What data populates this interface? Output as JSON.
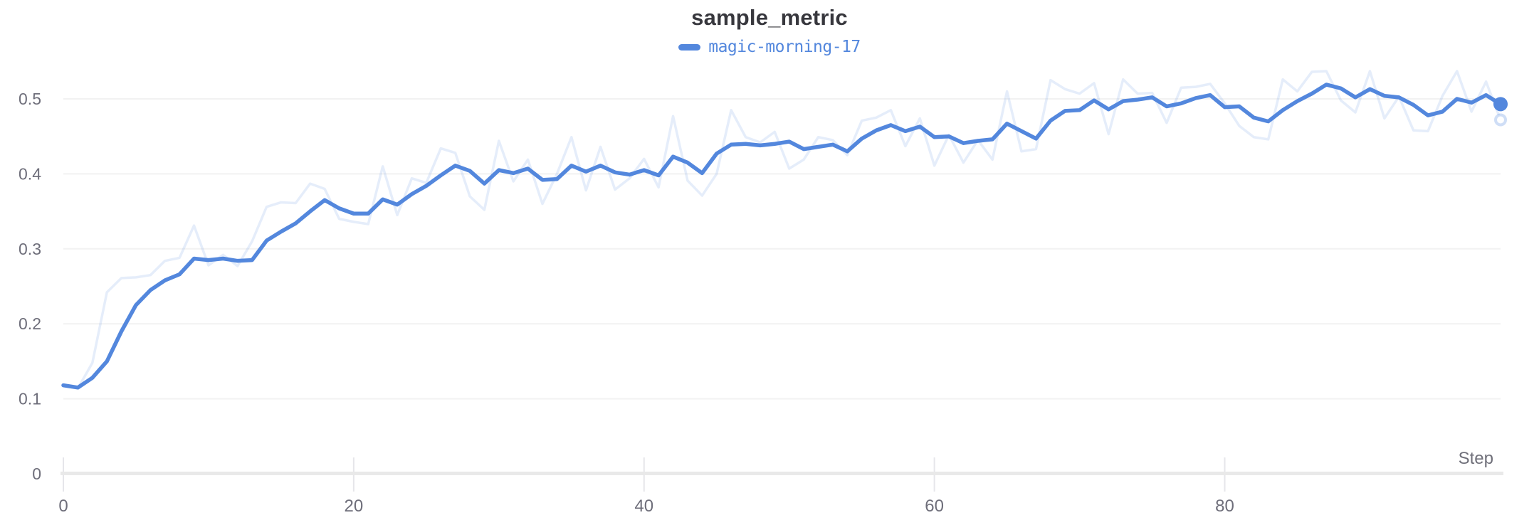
{
  "header": {
    "title": "sample_metric",
    "legend": {
      "run_name": "magic-morning-17",
      "color": "#5387DD"
    }
  },
  "colors": {
    "accent": "#5387DD",
    "grid": "#f2f2f2",
    "axis_line": "#e9e9e9",
    "tick_mark": "#e6e6ea",
    "tick_text": "#6e6e7a",
    "title_text": "#37373d",
    "raw_line_opacity": 0.15
  },
  "axes": {
    "x_label": "Step",
    "x_tick_values": [
      0,
      20,
      40,
      60,
      80
    ],
    "x_tick_labels": [
      "0",
      "20",
      "40",
      "60",
      "80"
    ],
    "y_tick_values": [
      0,
      0.1,
      0.2,
      0.3,
      0.4,
      0.5
    ],
    "y_tick_labels": [
      "0",
      "0.1",
      "0.2",
      "0.3",
      "0.4",
      "0.5"
    ],
    "x_range": [
      0,
      99
    ],
    "y_range": [
      0,
      0.55
    ],
    "grid": "horizontal-only"
  },
  "chart_data": {
    "type": "line",
    "title": "sample_metric",
    "xlabel": "Step",
    "legend_position": "top-center",
    "x": [
      0,
      1,
      2,
      3,
      4,
      5,
      6,
      7,
      8,
      9,
      10,
      11,
      12,
      13,
      14,
      15,
      16,
      17,
      18,
      19,
      20,
      21,
      22,
      23,
      24,
      25,
      26,
      27,
      28,
      29,
      30,
      31,
      32,
      33,
      34,
      35,
      36,
      37,
      38,
      39,
      40,
      41,
      42,
      43,
      44,
      45,
      46,
      47,
      48,
      49,
      50,
      51,
      52,
      53,
      54,
      55,
      56,
      57,
      58,
      59,
      60,
      61,
      62,
      63,
      64,
      65,
      66,
      67,
      68,
      69,
      70,
      71,
      72,
      73,
      74,
      75,
      76,
      77,
      78,
      79,
      80,
      81,
      82,
      83,
      84,
      85,
      86,
      87,
      88,
      89,
      90,
      91,
      92,
      93,
      94,
      95,
      96,
      97,
      98,
      99
    ],
    "series": [
      {
        "name": "magic-morning-17 (raw)",
        "role": "raw",
        "color": "#5387DD",
        "opacity": 0.15,
        "end_marker": "open-ring",
        "values": [
          0.117,
          0.114,
          0.148,
          0.242,
          0.261,
          0.262,
          0.265,
          0.284,
          0.288,
          0.331,
          0.278,
          0.292,
          0.277,
          0.31,
          0.356,
          0.362,
          0.361,
          0.387,
          0.38,
          0.34,
          0.336,
          0.333,
          0.41,
          0.345,
          0.394,
          0.388,
          0.434,
          0.428,
          0.37,
          0.352,
          0.444,
          0.39,
          0.419,
          0.36,
          0.4,
          0.449,
          0.378,
          0.436,
          0.379,
          0.394,
          0.42,
          0.382,
          0.477,
          0.391,
          0.371,
          0.4,
          0.485,
          0.449,
          0.442,
          0.456,
          0.407,
          0.419,
          0.449,
          0.445,
          0.425,
          0.471,
          0.475,
          0.485,
          0.437,
          0.474,
          0.411,
          0.452,
          0.415,
          0.445,
          0.419,
          0.51,
          0.43,
          0.433,
          0.525,
          0.513,
          0.507,
          0.521,
          0.453,
          0.526,
          0.507,
          0.508,
          0.468,
          0.515,
          0.516,
          0.52,
          0.494,
          0.464,
          0.449,
          0.446,
          0.526,
          0.51,
          0.536,
          0.537,
          0.498,
          0.482,
          0.537,
          0.474,
          0.503,
          0.458,
          0.457,
          0.504,
          0.537,
          0.483,
          0.523,
          0.472
        ]
      },
      {
        "name": "magic-morning-17",
        "role": "smoothed",
        "color": "#5387DD",
        "opacity": 1,
        "end_marker": "solid-dot",
        "values": [
          0.118,
          0.115,
          0.128,
          0.15,
          0.19,
          0.225,
          0.245,
          0.258,
          0.266,
          0.287,
          0.285,
          0.287,
          0.284,
          0.285,
          0.311,
          0.323,
          0.334,
          0.35,
          0.365,
          0.354,
          0.347,
          0.347,
          0.366,
          0.359,
          0.373,
          0.384,
          0.398,
          0.411,
          0.404,
          0.387,
          0.405,
          0.401,
          0.407,
          0.392,
          0.393,
          0.411,
          0.403,
          0.411,
          0.402,
          0.399,
          0.405,
          0.398,
          0.423,
          0.415,
          0.401,
          0.427,
          0.439,
          0.44,
          0.438,
          0.44,
          0.443,
          0.433,
          0.436,
          0.439,
          0.43,
          0.447,
          0.458,
          0.465,
          0.457,
          0.463,
          0.449,
          0.45,
          0.441,
          0.444,
          0.446,
          0.467,
          0.457,
          0.447,
          0.471,
          0.484,
          0.485,
          0.498,
          0.486,
          0.497,
          0.499,
          0.502,
          0.49,
          0.494,
          0.501,
          0.505,
          0.489,
          0.49,
          0.475,
          0.47,
          0.485,
          0.497,
          0.507,
          0.519,
          0.514,
          0.502,
          0.513,
          0.504,
          0.502,
          0.492,
          0.478,
          0.483,
          0.5,
          0.495,
          0.505,
          0.493
        ]
      }
    ]
  }
}
